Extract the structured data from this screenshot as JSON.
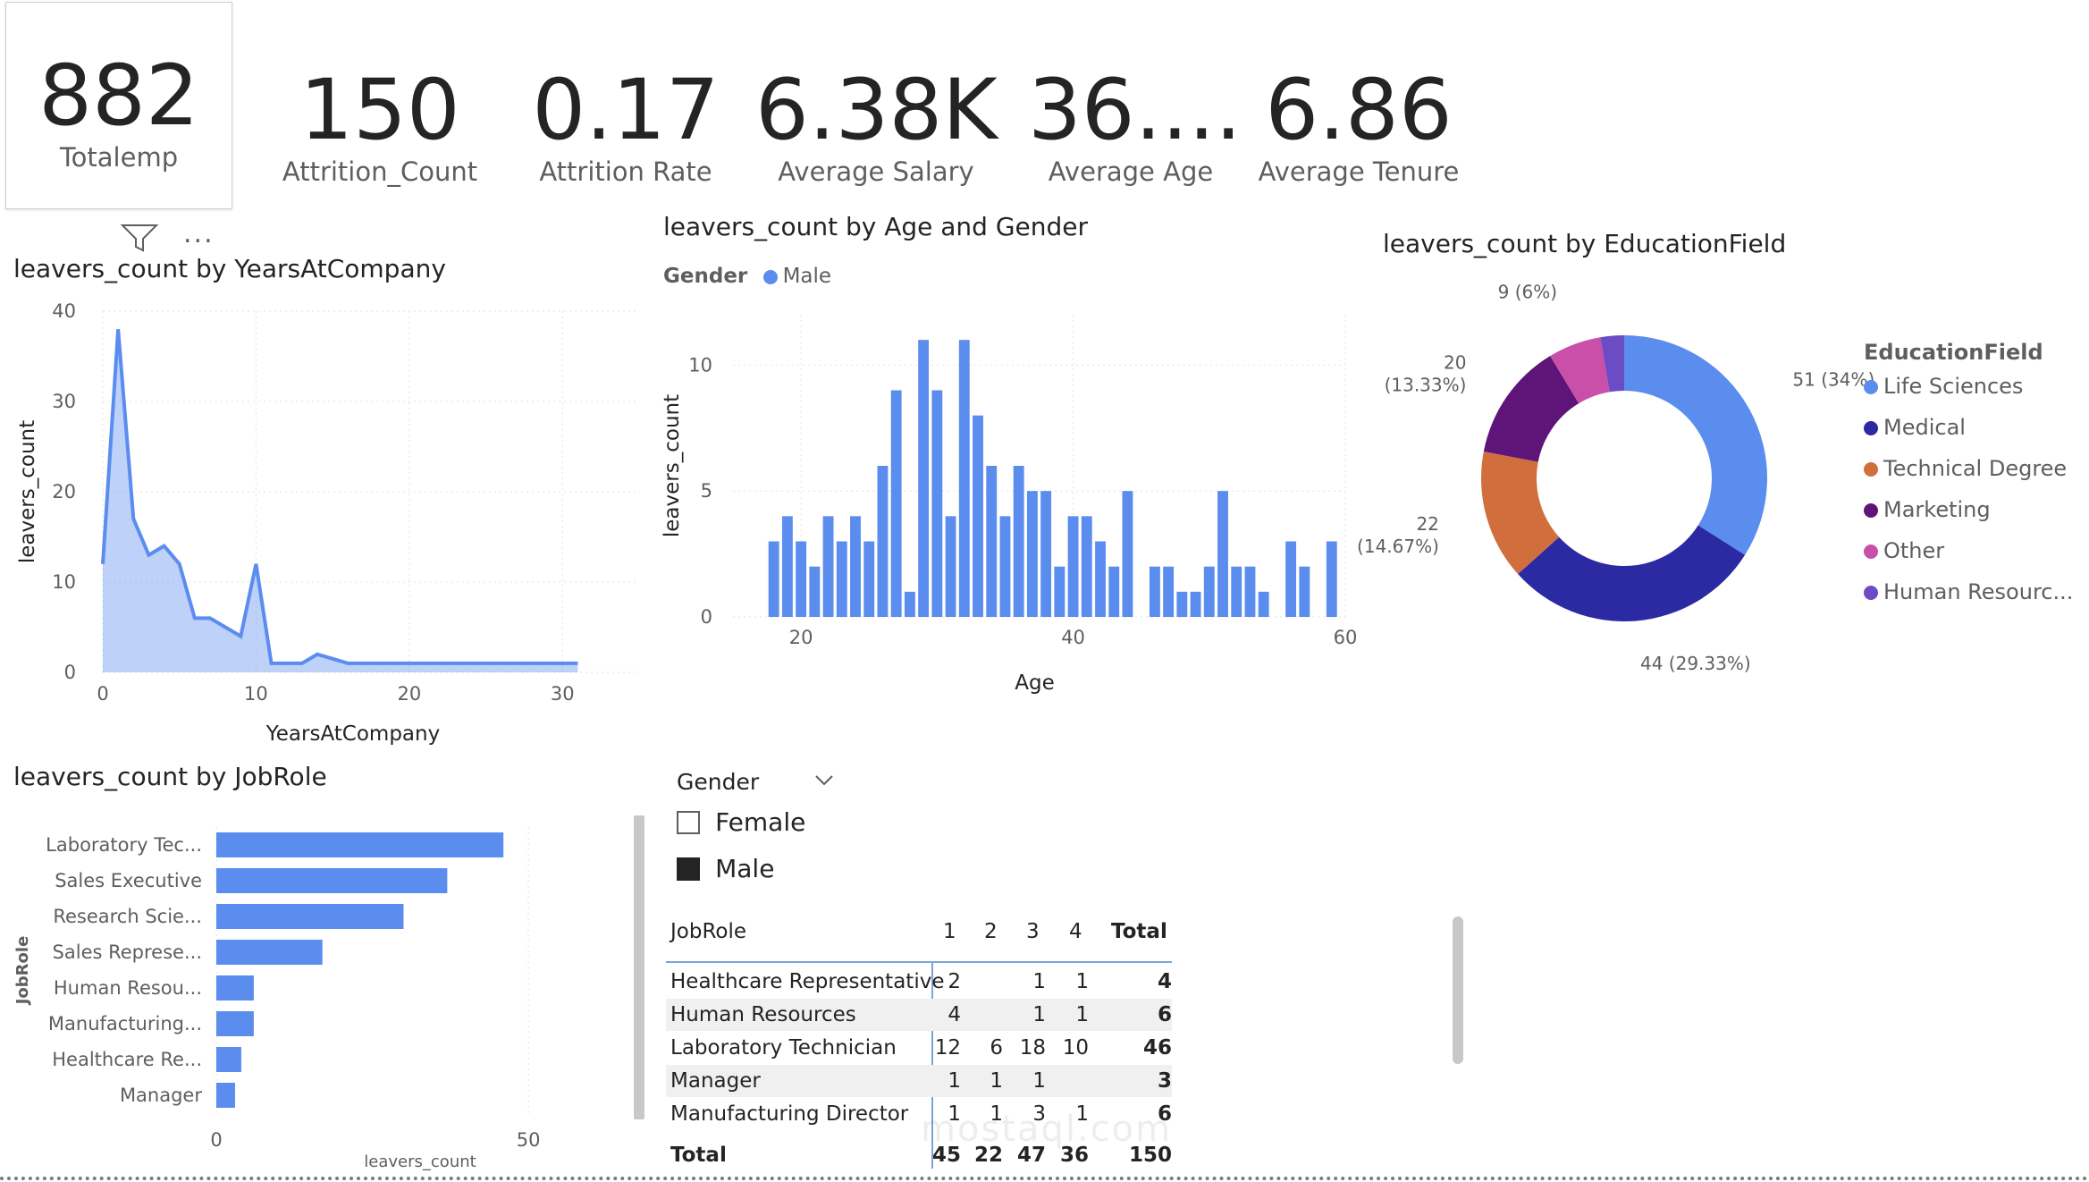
{
  "kpis": [
    {
      "value": "882",
      "label": "Totalemp"
    },
    {
      "value": "150",
      "label": "Attrition_Count"
    },
    {
      "value": "0.17",
      "label": "Attrition Rate"
    },
    {
      "value": "6.38K",
      "label": "Average Salary"
    },
    {
      "value": "36....",
      "label": "Average Age"
    },
    {
      "value": "6.86",
      "label": "Average Tenure"
    }
  ],
  "visual_header": {
    "filter_icon": "filter-icon",
    "more_icon": "more-options-icon",
    "more_label": "..."
  },
  "years_chart": {
    "title": "leavers_count by YearsAtCompany",
    "chart_data": {
      "type": "area",
      "x": [
        0,
        1,
        2,
        3,
        4,
        5,
        6,
        7,
        8,
        9,
        10,
        11,
        12,
        13,
        14,
        15,
        16,
        17,
        18,
        19,
        20,
        21,
        22,
        23,
        24,
        25,
        26,
        27,
        28,
        29,
        30,
        31
      ],
      "y": [
        12,
        38,
        17,
        13,
        14,
        12,
        6,
        6,
        5,
        4,
        12,
        1,
        1,
        1,
        2,
        1.5,
        1,
        1,
        1,
        1,
        1,
        1,
        1,
        1,
        1,
        1,
        1,
        1,
        1,
        1,
        1,
        1
      ],
      "xlabel": "YearsAtCompany",
      "ylabel": "leavers_count",
      "xticks": [
        "0",
        "10",
        "20",
        "30"
      ],
      "yticks": [
        "0",
        "10",
        "20",
        "30",
        "40"
      ],
      "xlim": [
        0,
        35
      ],
      "ylim": [
        0,
        40
      ],
      "color": "#5b8def"
    }
  },
  "age_chart": {
    "title": "leavers_count by Age and Gender",
    "legend_title": "Gender",
    "legend_item": "Male",
    "chart_data": {
      "type": "bar",
      "x": [
        18,
        19,
        20,
        21,
        22,
        23,
        24,
        25,
        26,
        27,
        28,
        29,
        30,
        31,
        32,
        33,
        34,
        35,
        36,
        37,
        38,
        39,
        40,
        41,
        42,
        43,
        44,
        45,
        46,
        47,
        48,
        49,
        50,
        51,
        52,
        53,
        54,
        55,
        56,
        57,
        58,
        59
      ],
      "values": [
        3,
        4,
        3,
        2,
        4,
        3,
        4,
        3,
        6,
        9,
        1,
        11,
        9,
        4,
        11,
        8,
        6,
        4,
        6,
        5,
        5,
        2,
        4,
        4,
        3,
        2,
        5,
        0,
        2,
        2,
        1,
        1,
        2,
        5,
        2,
        2,
        1,
        0,
        3,
        2,
        0,
        3
      ],
      "series": [
        {
          "name": "Male"
        }
      ],
      "xlabel": "Age",
      "ylabel": "leavers_count",
      "xticks": [
        "20",
        "40",
        "60"
      ],
      "yticks": [
        "0",
        "5",
        "10"
      ],
      "xlim": [
        15,
        60
      ],
      "ylim": [
        0,
        12
      ],
      "color": "#5b8def"
    }
  },
  "edu_chart": {
    "title": "leavers_count by EducationField",
    "legend_title": "EducationField",
    "chart_data": {
      "type": "pie",
      "categories": [
        "Life Sciences",
        "Medical",
        "Technical Degree",
        "Marketing",
        "Other",
        "Human Resourc..."
      ],
      "values": [
        51,
        44,
        22,
        20,
        9,
        4
      ],
      "data_labels": [
        "51 (34%)",
        "44 (29.33%)",
        "22",
        "20",
        "9 (6%)",
        ""
      ],
      "data_labels_sub": [
        "",
        "",
        "(14.67%)",
        "(13.33%)",
        "",
        ""
      ],
      "colors": [
        "#5b8def",
        "#2b2aa3",
        "#d06f3d",
        "#5e1479",
        "#c94fa8",
        "#6b4cc4"
      ]
    }
  },
  "jobrole_chart": {
    "title": "leavers_count by JobRole",
    "chart_data": {
      "type": "bar",
      "categories": [
        "Laboratory Tec...",
        "Sales Executive",
        "Research Scie...",
        "Sales Represe...",
        "Human Resou...",
        "Manufacturing...",
        "Healthcare Re...",
        "Manager"
      ],
      "values": [
        46,
        37,
        30,
        17,
        6,
        6,
        4,
        3
      ],
      "xlabel": "leavers_count",
      "ylabel": "JobRole",
      "xticks": [
        "0",
        "50"
      ],
      "xlim": [
        0,
        57
      ],
      "color": "#5b8def"
    }
  },
  "slicer": {
    "title": "Gender",
    "chevron_icon": "chevron-down-icon",
    "options": [
      {
        "label": "Female",
        "checked": false
      },
      {
        "label": "Male",
        "checked": true
      }
    ]
  },
  "matrix": {
    "header": [
      "JobRole",
      "1",
      "2",
      "3",
      "4",
      "Total"
    ],
    "rows": [
      [
        "Healthcare Representative",
        "2",
        "",
        "1",
        "1",
        "4"
      ],
      [
        "Human Resources",
        "4",
        "",
        "1",
        "1",
        "6"
      ],
      [
        "Laboratory Technician",
        "12",
        "6",
        "18",
        "10",
        "46"
      ],
      [
        "Manager",
        "1",
        "1",
        "1",
        "",
        "3"
      ],
      [
        "Manufacturing Director",
        "1",
        "1",
        "3",
        "1",
        "6"
      ]
    ],
    "total": [
      "Total",
      "45",
      "22",
      "47",
      "36",
      "150"
    ]
  },
  "watermark": "mostaql.com"
}
